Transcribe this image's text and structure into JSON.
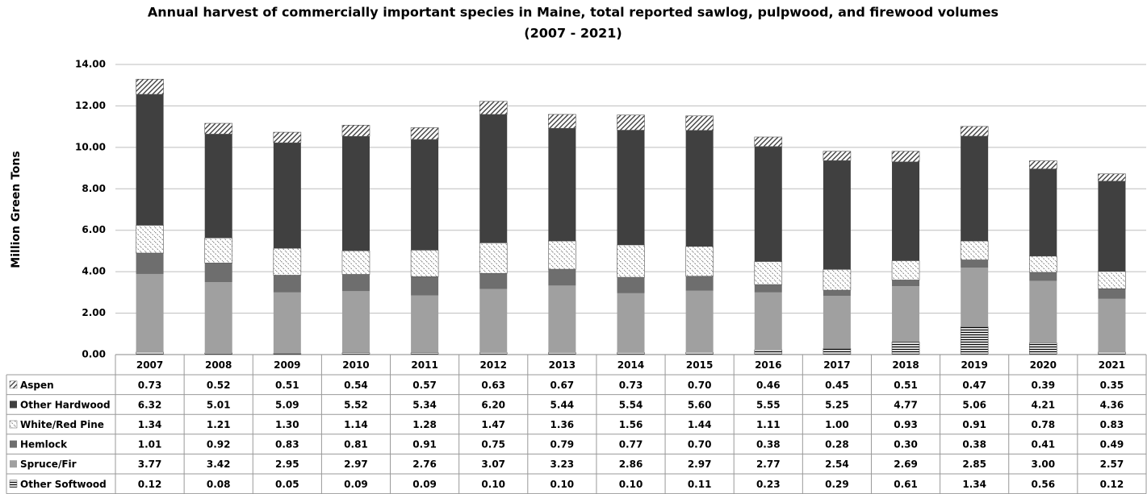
{
  "chart_data": {
    "type": "stacked-bar",
    "title": "Annual harvest of commercially important  species in Maine, total reported sawlog, pulpwood, and firewood volumes",
    "subtitle": "(2007 - 2021)",
    "y_label": "Million Green Tons",
    "categories": [
      "2007",
      "2008",
      "2009",
      "2010",
      "2011",
      "2012",
      "2013",
      "2014",
      "2015",
      "2016",
      "2017",
      "2018",
      "2019",
      "2020",
      "2021"
    ],
    "ylim": [
      0,
      14
    ],
    "yticks": [
      {
        "value": 0,
        "label": "0.00"
      },
      {
        "value": 2,
        "label": "2.00"
      },
      {
        "value": 4,
        "label": "4.00"
      },
      {
        "value": 6,
        "label": "6.00"
      },
      {
        "value": 8,
        "label": "8.00"
      },
      {
        "value": 10,
        "label": "10.00"
      },
      {
        "value": 12,
        "label": "12.00"
      },
      {
        "value": 14,
        "label": "14.00"
      }
    ],
    "grid": true,
    "series": [
      {
        "name": "Aspen",
        "color": "#404040",
        "pattern": "diagonal",
        "values": [
          0.73,
          0.52,
          0.51,
          0.54,
          0.57,
          0.63,
          0.67,
          0.73,
          0.7,
          0.46,
          0.45,
          0.51,
          0.47,
          0.39,
          0.35
        ],
        "value_labels": [
          "0.73",
          "0.52",
          "0.51",
          "0.54",
          "0.57",
          "0.63",
          "0.67",
          "0.73",
          "0.70",
          "0.46",
          "0.45",
          "0.51",
          "0.47",
          "0.39",
          "0.35"
        ]
      },
      {
        "name": "Other Hardwood",
        "color": "#404040",
        "values": [
          6.32,
          5.01,
          5.09,
          5.52,
          5.34,
          6.2,
          5.44,
          5.54,
          5.6,
          5.55,
          5.25,
          4.77,
          5.06,
          4.21,
          4.36
        ],
        "value_labels": [
          "6.32",
          "5.01",
          "5.09",
          "5.52",
          "5.34",
          "6.20",
          "5.44",
          "5.54",
          "5.60",
          "5.55",
          "5.25",
          "4.77",
          "5.06",
          "4.21",
          "4.36"
        ]
      },
      {
        "name": "White/Red Pine",
        "color": "#8a8a8a",
        "pattern": "dashed-diagonal",
        "values": [
          1.34,
          1.21,
          1.3,
          1.14,
          1.28,
          1.47,
          1.36,
          1.56,
          1.44,
          1.11,
          1.0,
          0.93,
          0.91,
          0.78,
          0.83
        ],
        "value_labels": [
          "1.34",
          "1.21",
          "1.30",
          "1.14",
          "1.28",
          "1.47",
          "1.36",
          "1.56",
          "1.44",
          "1.11",
          "1.00",
          "0.93",
          "0.91",
          "0.78",
          "0.83"
        ]
      },
      {
        "name": "Hemlock",
        "color": "#6e6e6e",
        "values": [
          1.01,
          0.92,
          0.83,
          0.81,
          0.91,
          0.75,
          0.79,
          0.77,
          0.7,
          0.38,
          0.28,
          0.3,
          0.38,
          0.41,
          0.49
        ],
        "value_labels": [
          "1.01",
          "0.92",
          "0.83",
          "0.81",
          "0.91",
          "0.75",
          "0.79",
          "0.77",
          "0.70",
          "0.38",
          "0.28",
          "0.30",
          "0.38",
          "0.41",
          "0.49"
        ]
      },
      {
        "name": "Spruce/Fir",
        "color": "#a0a0a0",
        "values": [
          3.77,
          3.42,
          2.95,
          2.97,
          2.76,
          3.07,
          3.23,
          2.86,
          2.97,
          2.77,
          2.54,
          2.69,
          2.85,
          3.0,
          2.57
        ],
        "value_labels": [
          "3.77",
          "3.42",
          "2.95",
          "2.97",
          "2.76",
          "3.07",
          "3.23",
          "2.86",
          "2.97",
          "2.77",
          "2.54",
          "2.69",
          "2.85",
          "3.00",
          "2.57"
        ]
      },
      {
        "name": "Other Softwood",
        "color": "#000000",
        "pattern": "horizontal",
        "values": [
          0.12,
          0.08,
          0.05,
          0.09,
          0.09,
          0.1,
          0.1,
          0.1,
          0.11,
          0.23,
          0.29,
          0.61,
          1.34,
          0.56,
          0.12
        ],
        "value_labels": [
          "0.12",
          "0.08",
          "0.05",
          "0.09",
          "0.09",
          "0.10",
          "0.10",
          "0.10",
          "0.11",
          "0.23",
          "0.29",
          "0.61",
          "1.34",
          "0.56",
          "0.12"
        ]
      }
    ]
  }
}
